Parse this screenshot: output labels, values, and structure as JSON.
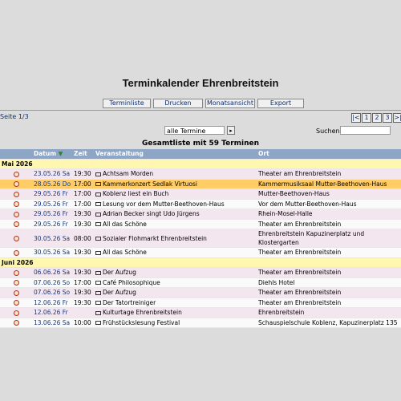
{
  "header": {
    "title": "Terminkalender Ehrenbreitstein"
  },
  "toolbar": {
    "buttons": [
      "Terminliste",
      "Drucken",
      "Monatsansicht",
      "Export"
    ]
  },
  "pagination": {
    "page": "Seite 1/3",
    "links": [
      "|<",
      "1",
      "2",
      "3",
      ">|"
    ]
  },
  "filter": {
    "select": "alle Termine",
    "search_label": "Suchen"
  },
  "table": {
    "caption": "Gesamtliste mit 59 Terminen",
    "columns": [
      "Datum",
      "Zeit",
      "Veranstaltung",
      "Ort"
    ],
    "groups": [
      {
        "month": "Mai 2026",
        "rows": [
          {
            "date": "23.05.26",
            "day": "Sa",
            "time": "19:30",
            "title": "Achtsam Morden",
            "place": "Theater am Ehrenbreitstein"
          },
          {
            "date": "28.05.26",
            "day": "Do",
            "time": "17:00",
            "title": "Kammerkonzert Sedlak Virtuosi",
            "place": "Kammermusiksaal Mutter-Beethoven-Haus",
            "highlighted": true
          },
          {
            "date": "29.05.26",
            "day": "Fr",
            "time": "17:00",
            "title": "Koblenz liest ein Buch",
            "place": "Mutter-Beethoven-Haus"
          },
          {
            "date": "29.05.26",
            "day": "Fr",
            "time": "17:00",
            "title": "Lesung vor dem Mutter-Beethoven-Haus",
            "place": "Vor dem Mutter-Beethoven-Haus"
          },
          {
            "date": "29.05.26",
            "day": "Fr",
            "time": "19:30",
            "title": "Adrian Becker singt Udo Jürgens",
            "place": "Rhein-Mosel-Halle"
          },
          {
            "date": "29.05.26",
            "day": "Fr",
            "time": "19:30",
            "title": "All das Schöne",
            "place": "Theater am Ehrenbreitstein"
          },
          {
            "date": "30.05.26",
            "day": "Sa",
            "time": "08:00",
            "title": "Sozialer Flohmarkt Ehrenbreitstein",
            "place": "Ehrenbreitstein Kapuzinerplatz und Klostergarten"
          },
          {
            "date": "30.05.26",
            "day": "Sa",
            "time": "19:30",
            "title": "All das Schöne",
            "place": "Theater am Ehrenbreitstein"
          }
        ]
      },
      {
        "month": "Juni 2026",
        "rows": [
          {
            "date": "06.06.26",
            "day": "Sa",
            "time": "19:30",
            "title": "Der Aufzug",
            "place": "Theater am Ehrenbreitstein"
          },
          {
            "date": "07.06.26",
            "day": "So",
            "time": "17:00",
            "title": "Café Philosophique",
            "place": "Diehls Hotel"
          },
          {
            "date": "07.06.26",
            "day": "So",
            "time": "19:30",
            "title": "Der Aufzug",
            "place": "Theater am Ehrenbreitstein"
          },
          {
            "date": "12.06.26",
            "day": "Fr",
            "time": "19:30",
            "title": "Der Tatortreiniger",
            "place": "Theater am Ehrenbreitstein"
          },
          {
            "date": "12.06.26",
            "day": "Fr",
            "time": null,
            "title": "Kulturtage Ehrenbreitstein",
            "place": "Ehrenbreitstein"
          },
          {
            "date": "13.06.26",
            "day": "Sa",
            "time": "10:00",
            "title": "Frühstückslesung Festival",
            "place": "Schauspielschule Koblenz, Kapuzinerplatz 135"
          }
        ]
      }
    ]
  }
}
